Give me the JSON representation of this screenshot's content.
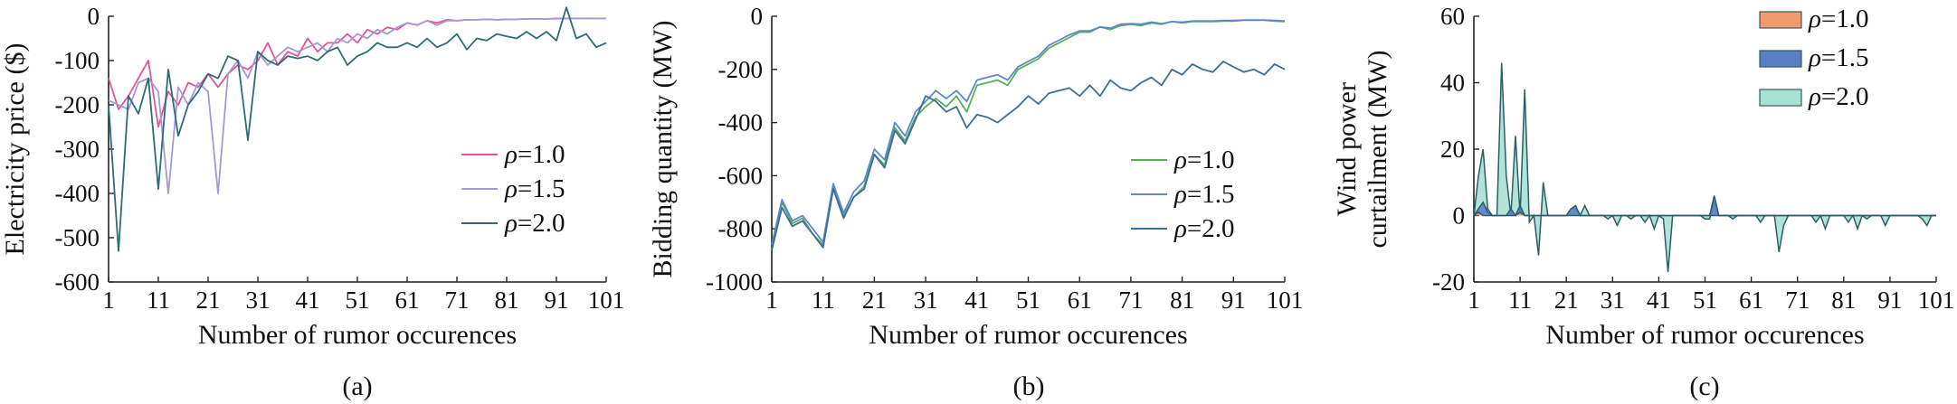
{
  "chart_data": [
    {
      "id": "a",
      "type": "line",
      "caption": "(a)",
      "xlabel": "Number of rumor occurences",
      "ylabel": "Electricity price ($)",
      "xlim": [
        1,
        101
      ],
      "ylim": [
        -600,
        0
      ],
      "xticks": [
        1,
        11,
        21,
        31,
        41,
        51,
        61,
        71,
        81,
        91,
        101
      ],
      "xtick_labels": [
        "1",
        "11",
        "21",
        "31",
        "41",
        "51",
        "61",
        "71",
        "81",
        "91",
        "101"
      ],
      "yticks": [
        -600,
        -500,
        -400,
        -300,
        -200,
        -100,
        0
      ],
      "ytick_labels": [
        "-600",
        "-500",
        "-400",
        "-300",
        "-200",
        "-100",
        "0"
      ],
      "legend_position": "lower-right",
      "x": [
        1,
        3,
        5,
        7,
        9,
        11,
        13,
        15,
        17,
        19,
        21,
        23,
        25,
        27,
        29,
        31,
        33,
        35,
        37,
        39,
        41,
        43,
        45,
        47,
        49,
        51,
        53,
        55,
        57,
        59,
        61,
        63,
        65,
        67,
        69,
        71,
        73,
        75,
        77,
        79,
        81,
        83,
        85,
        87,
        89,
        91,
        93,
        95,
        97,
        99,
        101
      ],
      "series": [
        {
          "name": "ρ=1.0",
          "color": "#e0559a",
          "values": [
            -140,
            -210,
            -180,
            -140,
            -100,
            -250,
            -170,
            -200,
            -150,
            -160,
            -130,
            -160,
            -130,
            -110,
            -120,
            -100,
            -60,
            -110,
            -80,
            -90,
            -50,
            -80,
            -60,
            -60,
            -40,
            -60,
            -30,
            -40,
            -25,
            -30,
            -15,
            -20,
            -10,
            -15,
            -8,
            -10,
            -8,
            -8,
            -7,
            -8,
            -7,
            -7,
            -6,
            -6,
            -6,
            -5,
            -5,
            -5,
            -5,
            -5,
            -5
          ]
        },
        {
          "name": "ρ=1.5",
          "color": "#a898d0",
          "values": [
            -190,
            -200,
            -210,
            -150,
            -140,
            -170,
            -400,
            -160,
            -200,
            -150,
            -170,
            -400,
            -130,
            -100,
            -140,
            -80,
            -110,
            -90,
            -70,
            -80,
            -70,
            -60,
            -80,
            -50,
            -60,
            -40,
            -50,
            -30,
            -40,
            -25,
            -15,
            -20,
            -10,
            -20,
            -10,
            -10,
            -8,
            -8,
            -7,
            -8,
            -7,
            -7,
            -6,
            -6,
            -6,
            -6,
            -5,
            -5,
            -5,
            -5,
            -5
          ]
        },
        {
          "name": "ρ=2.0",
          "color": "#2f6b76",
          "values": [
            -200,
            -530,
            -180,
            -220,
            -140,
            -390,
            -120,
            -270,
            -200,
            -170,
            -130,
            -140,
            -90,
            -100,
            -280,
            -80,
            -100,
            -110,
            -90,
            -95,
            -90,
            -100,
            -80,
            -70,
            -110,
            -90,
            -80,
            -60,
            -70,
            -70,
            -60,
            -70,
            -50,
            -70,
            -60,
            -40,
            -75,
            -50,
            -55,
            -40,
            -45,
            -50,
            -35,
            -50,
            -35,
            -55,
            20,
            -50,
            -40,
            -70,
            -60
          ]
        }
      ]
    },
    {
      "id": "b",
      "type": "line",
      "caption": "(b)",
      "xlabel": "Number of rumor occurences",
      "ylabel": "Bidding quantity (MW)",
      "xlim": [
        1,
        101
      ],
      "ylim": [
        -1000,
        0
      ],
      "xticks": [
        1,
        11,
        21,
        31,
        41,
        51,
        61,
        71,
        81,
        91,
        101
      ],
      "xtick_labels": [
        "1",
        "11",
        "21",
        "31",
        "41",
        "51",
        "61",
        "71",
        "81",
        "91",
        "101"
      ],
      "yticks": [
        -1000,
        -800,
        -600,
        -400,
        -200,
        0
      ],
      "ytick_labels": [
        "-1000",
        "-800",
        "-600",
        "-400",
        "-200",
        "0"
      ],
      "legend_position": "lower-right",
      "x": [
        1,
        3,
        5,
        7,
        9,
        11,
        13,
        15,
        17,
        19,
        21,
        23,
        25,
        27,
        29,
        31,
        33,
        35,
        37,
        39,
        41,
        43,
        45,
        47,
        49,
        51,
        53,
        55,
        57,
        59,
        61,
        63,
        65,
        67,
        69,
        71,
        73,
        75,
        77,
        79,
        81,
        83,
        85,
        87,
        89,
        91,
        93,
        95,
        97,
        99,
        101
      ],
      "series": [
        {
          "name": "ρ=1.0",
          "color": "#58b058",
          "values": [
            -880,
            -700,
            -780,
            -760,
            -820,
            -860,
            -640,
            -750,
            -680,
            -640,
            -520,
            -560,
            -420,
            -470,
            -380,
            -340,
            -310,
            -340,
            -300,
            -360,
            -260,
            -250,
            -240,
            -260,
            -200,
            -180,
            -160,
            -120,
            -100,
            -80,
            -60,
            -60,
            -40,
            -50,
            -35,
            -30,
            -35,
            -25,
            -30,
            -20,
            -25,
            -20,
            -20,
            -20,
            -18,
            -18,
            -15,
            -15,
            -15,
            -18,
            -20
          ]
        },
        {
          "name": "ρ=1.5",
          "color": "#5c8ac8",
          "values": [
            -860,
            -690,
            -770,
            -750,
            -800,
            -850,
            -630,
            -740,
            -660,
            -620,
            -500,
            -540,
            -400,
            -450,
            -360,
            -320,
            -280,
            -310,
            -280,
            -320,
            -240,
            -230,
            -220,
            -240,
            -190,
            -170,
            -150,
            -110,
            -90,
            -70,
            -55,
            -55,
            -40,
            -45,
            -30,
            -28,
            -30,
            -22,
            -28,
            -20,
            -22,
            -18,
            -18,
            -18,
            -16,
            -16,
            -14,
            -14,
            -14,
            -16,
            -18
          ]
        },
        {
          "name": "ρ=2.0",
          "color": "#3a6e98",
          "values": [
            -880,
            -720,
            -790,
            -770,
            -820,
            -870,
            -650,
            -760,
            -680,
            -650,
            -520,
            -570,
            -430,
            -480,
            -390,
            -300,
            -320,
            -360,
            -340,
            -420,
            -370,
            -380,
            -400,
            -370,
            -340,
            -300,
            -330,
            -290,
            -280,
            -270,
            -300,
            -260,
            -300,
            -240,
            -270,
            -280,
            -250,
            -230,
            -260,
            -200,
            -220,
            -180,
            -200,
            -210,
            -170,
            -190,
            -210,
            -200,
            -220,
            -180,
            -200
          ]
        }
      ]
    },
    {
      "id": "c",
      "type": "area",
      "caption": "(c)",
      "xlabel": "Number of rumor occurences",
      "ylabel_lines": [
        "Wind power",
        "curtailment (MW)"
      ],
      "xlim": [
        1,
        101
      ],
      "ylim": [
        -20,
        60
      ],
      "xticks": [
        1,
        11,
        21,
        31,
        41,
        51,
        61,
        71,
        81,
        91,
        101
      ],
      "xtick_labels": [
        "1",
        "11",
        "21",
        "31",
        "41",
        "51",
        "61",
        "71",
        "81",
        "91",
        "101"
      ],
      "yticks": [
        -20,
        0,
        20,
        40,
        60
      ],
      "ytick_labels": [
        "-20",
        "0",
        "20",
        "40",
        "60"
      ],
      "legend_position": "top-right",
      "x": [
        1,
        2,
        3,
        4,
        5,
        6,
        7,
        8,
        9,
        10,
        11,
        12,
        13,
        14,
        15,
        16,
        17,
        18,
        19,
        20,
        21,
        22,
        23,
        24,
        25,
        26,
        27,
        28,
        29,
        30,
        31,
        32,
        33,
        34,
        35,
        36,
        37,
        38,
        39,
        40,
        41,
        42,
        43,
        44,
        45,
        46,
        47,
        48,
        49,
        50,
        51,
        52,
        53,
        54,
        55,
        56,
        57,
        58,
        59,
        60,
        61,
        62,
        63,
        64,
        65,
        66,
        67,
        68,
        69,
        70,
        71,
        72,
        73,
        74,
        75,
        76,
        77,
        78,
        79,
        80,
        81,
        82,
        83,
        84,
        85,
        86,
        87,
        88,
        89,
        90,
        91,
        92,
        93,
        94,
        95,
        96,
        97,
        98,
        99,
        100,
        101
      ],
      "series": [
        {
          "name": "ρ=1.0",
          "color": "#ef9a6a",
          "values": [
            0,
            1,
            0,
            0,
            0,
            0,
            0,
            0,
            0,
            0,
            1,
            0,
            0,
            0,
            0,
            0,
            0,
            0,
            0,
            0,
            0,
            0,
            0,
            0,
            0,
            0,
            0,
            0,
            0,
            0,
            0,
            0,
            0,
            0,
            0,
            0,
            0,
            0,
            0,
            0,
            0,
            0,
            0,
            0,
            0,
            0,
            0,
            0,
            0,
            0,
            0,
            0,
            0,
            0,
            0,
            0,
            0,
            0,
            0,
            0,
            0,
            0,
            0,
            0,
            0,
            0,
            0,
            0,
            0,
            0,
            0,
            0,
            0,
            0,
            0,
            0,
            0,
            0,
            0,
            0,
            0,
            0,
            0,
            0,
            0,
            0,
            0,
            0,
            0,
            0,
            0,
            0,
            0,
            0,
            0,
            0,
            0,
            0,
            0,
            0,
            0
          ]
        },
        {
          "name": "ρ=1.5",
          "color": "#5a7fc6",
          "values": [
            0,
            2,
            4,
            1,
            0,
            0,
            0,
            0,
            2,
            0,
            3,
            0,
            0,
            0,
            0,
            0,
            0,
            0,
            0,
            0,
            0,
            2,
            3,
            0,
            0,
            0,
            0,
            0,
            0,
            0,
            0,
            0,
            0,
            0,
            0,
            0,
            0,
            0,
            0,
            0,
            0,
            0,
            0,
            0,
            0,
            0,
            0,
            0,
            0,
            0,
            0,
            0,
            6,
            0,
            0,
            0,
            0,
            0,
            0,
            0,
            0,
            0,
            0,
            0,
            0,
            0,
            0,
            0,
            0,
            0,
            0,
            0,
            0,
            0,
            0,
            0,
            0,
            0,
            0,
            0,
            0,
            0,
            0,
            0,
            0,
            0,
            0,
            0,
            0,
            0,
            0,
            0,
            0,
            0,
            0,
            0,
            0,
            0,
            0,
            0,
            0
          ]
        },
        {
          "name": "ρ=2.0",
          "color": "#a8e0d2",
          "values": [
            0,
            12,
            20,
            2,
            0,
            0,
            46,
            12,
            0,
            24,
            0,
            38,
            -2,
            0,
            -12,
            10,
            0,
            0,
            0,
            0,
            0,
            2,
            2,
            0,
            3,
            0,
            0,
            0,
            0,
            -1,
            0,
            -3,
            0,
            0,
            -1,
            0,
            0,
            -2,
            0,
            -4,
            0,
            -1,
            -17,
            0,
            0,
            0,
            0,
            0,
            0,
            0,
            -1,
            -1,
            4,
            0,
            0,
            0,
            -1,
            0,
            0,
            0,
            0,
            0,
            -2,
            0,
            0,
            0,
            -11,
            -3,
            0,
            0,
            0,
            0,
            0,
            0,
            -2,
            0,
            -4,
            0,
            0,
            0,
            0,
            -2,
            0,
            -4,
            0,
            -1,
            0,
            0,
            0,
            -3,
            0,
            0,
            0,
            0,
            0,
            0,
            0,
            -1,
            -3,
            0,
            0
          ]
        }
      ]
    }
  ]
}
